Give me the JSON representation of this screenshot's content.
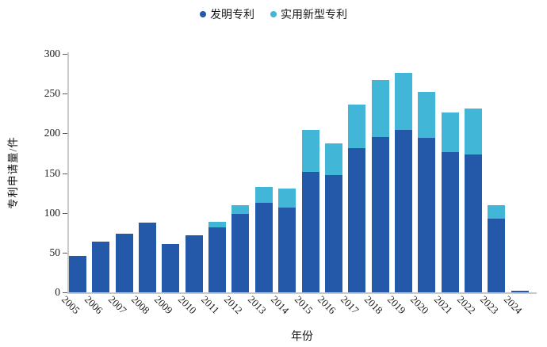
{
  "legend": [
    {
      "label": "发明专利",
      "color": "#2458A8"
    },
    {
      "label": "实用新型专利",
      "color": "#41B6D6"
    }
  ],
  "y_axis": {
    "title": "专利申请量/件",
    "ticks": [
      0,
      50,
      100,
      150,
      200,
      250,
      300
    ],
    "max": 300
  },
  "x_axis": {
    "title": "年份"
  },
  "chart_data": {
    "type": "bar",
    "stacked": true,
    "title": "",
    "xlabel": "年份",
    "ylabel": "专利申请量/件",
    "ylim": [
      0,
      300
    ],
    "grid": false,
    "legend_position": "top-center",
    "categories": [
      "2005",
      "2006",
      "2007",
      "2008",
      "2009",
      "2010",
      "2011",
      "2012",
      "2013",
      "2014",
      "2015",
      "2016",
      "2017",
      "2018",
      "2019",
      "2020",
      "2021",
      "2022",
      "2023",
      "2024"
    ],
    "series": [
      {
        "name": "发明专利",
        "color": "#2458A8",
        "values": [
          46,
          64,
          74,
          88,
          61,
          72,
          82,
          99,
          113,
          107,
          152,
          148,
          181,
          195,
          204,
          194,
          176,
          173,
          93,
          2
        ]
      },
      {
        "name": "实用新型专利",
        "color": "#41B6D6",
        "values": [
          0,
          0,
          0,
          0,
          0,
          0,
          7,
          11,
          20,
          24,
          52,
          39,
          55,
          72,
          72,
          58,
          50,
          58,
          17,
          0
        ]
      }
    ],
    "totals": [
      46,
      64,
      74,
      88,
      61,
      72,
      89,
      110,
      133,
      131,
      204,
      187,
      236,
      267,
      276,
      252,
      226,
      231,
      110,
      2
    ]
  }
}
